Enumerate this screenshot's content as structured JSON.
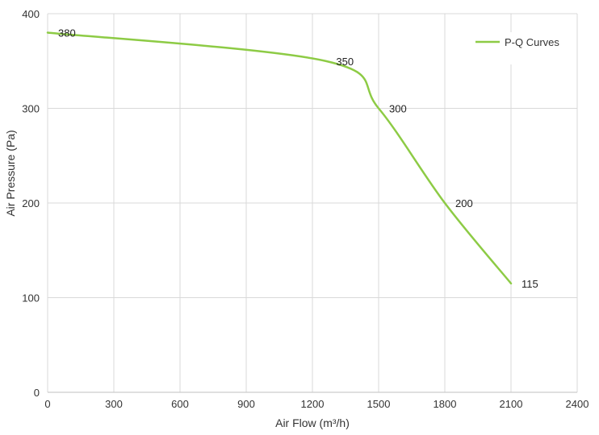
{
  "chart_data": {
    "type": "line",
    "title": "",
    "xlabel": "Air Flow  (m³/h)",
    "ylabel": "Air Pressure  (Pa)",
    "xlim": [
      0,
      2400
    ],
    "ylim": [
      0,
      400
    ],
    "x_ticks": [
      0,
      300,
      600,
      900,
      1200,
      1500,
      1800,
      2100,
      2400
    ],
    "y_ticks": [
      0,
      100,
      200,
      300,
      400
    ],
    "x_tick_labels": [
      "0",
      "300",
      "600",
      "900",
      "1200",
      "1500",
      "1800",
      "2100",
      "2400"
    ],
    "y_tick_labels": [
      "0",
      "100",
      "200",
      "300",
      "400"
    ],
    "grid": true,
    "legend_position": "top-right",
    "series": [
      {
        "name": "P-Q Curves",
        "color": "#8dcb45",
        "x": [
          0,
          1260,
          1500,
          1800,
          2100
        ],
        "y": [
          380,
          350,
          300,
          200,
          115
        ],
        "labels": [
          "380",
          "350",
          "300",
          "200",
          "115"
        ]
      }
    ]
  }
}
